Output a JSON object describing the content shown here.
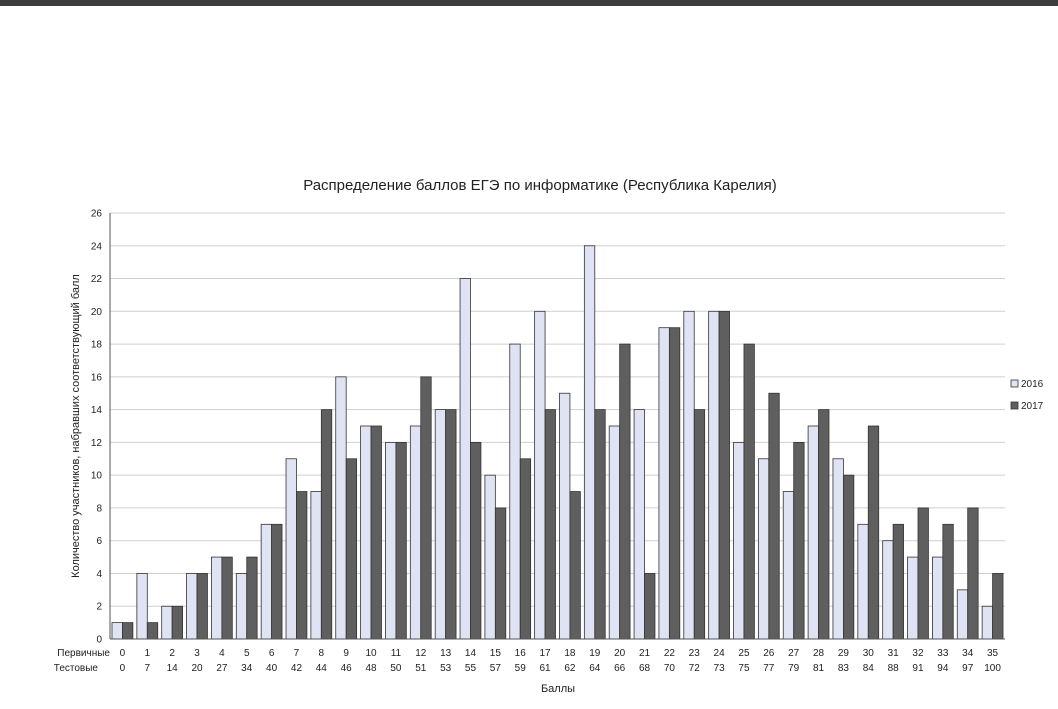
{
  "chart_data": {
    "type": "bar",
    "title": "Распределение баллов ЕГЭ по информатике (Республика Карелия)",
    "xlabel": "Баллы",
    "ylabel": "Количество участников, набравших соответствующий балл",
    "ylim": [
      0,
      26
    ],
    "yticks": [
      "0",
      "2",
      "4",
      "6",
      "8",
      "10",
      "12",
      "14",
      "16",
      "18",
      "20",
      "22",
      "24",
      "26"
    ],
    "grid": true,
    "legend_position": "right",
    "row_labels": {
      "primary": "Первичные",
      "test": "Тестовые"
    },
    "categories": [
      "0",
      "1",
      "2",
      "3",
      "4",
      "5",
      "6",
      "7",
      "8",
      "9",
      "10",
      "11",
      "12",
      "13",
      "14",
      "15",
      "16",
      "17",
      "18",
      "19",
      "20",
      "21",
      "22",
      "23",
      "24",
      "25",
      "26",
      "27",
      "28",
      "29",
      "30",
      "31",
      "32",
      "33",
      "34",
      "35"
    ],
    "test_scores": [
      "0",
      "7",
      "14",
      "20",
      "27",
      "34",
      "40",
      "42",
      "44",
      "46",
      "48",
      "50",
      "51",
      "53",
      "55",
      "57",
      "59",
      "61",
      "62",
      "64",
      "66",
      "68",
      "70",
      "72",
      "73",
      "75",
      "77",
      "79",
      "81",
      "83",
      "84",
      "88",
      "91",
      "94",
      "97",
      "100"
    ],
    "series": [
      {
        "name": "2016",
        "color": "#dfe3f3",
        "values": [
          1,
          4,
          2,
          4,
          5,
          4,
          7,
          11,
          9,
          16,
          13,
          12,
          13,
          14,
          22,
          10,
          18,
          20,
          15,
          24,
          13,
          14,
          19,
          20,
          20,
          12,
          11,
          9,
          13,
          11,
          7,
          6,
          5,
          5,
          3,
          2
        ]
      },
      {
        "name": "2017",
        "color": "#5f5f5f",
        "values": [
          1,
          1,
          2,
          4,
          5,
          5,
          7,
          9,
          14,
          11,
          13,
          12,
          16,
          14,
          12,
          8,
          11,
          14,
          9,
          14,
          18,
          4,
          19,
          14,
          20,
          18,
          15,
          12,
          14,
          10,
          13,
          7,
          8,
          7,
          8,
          4
        ]
      }
    ]
  }
}
